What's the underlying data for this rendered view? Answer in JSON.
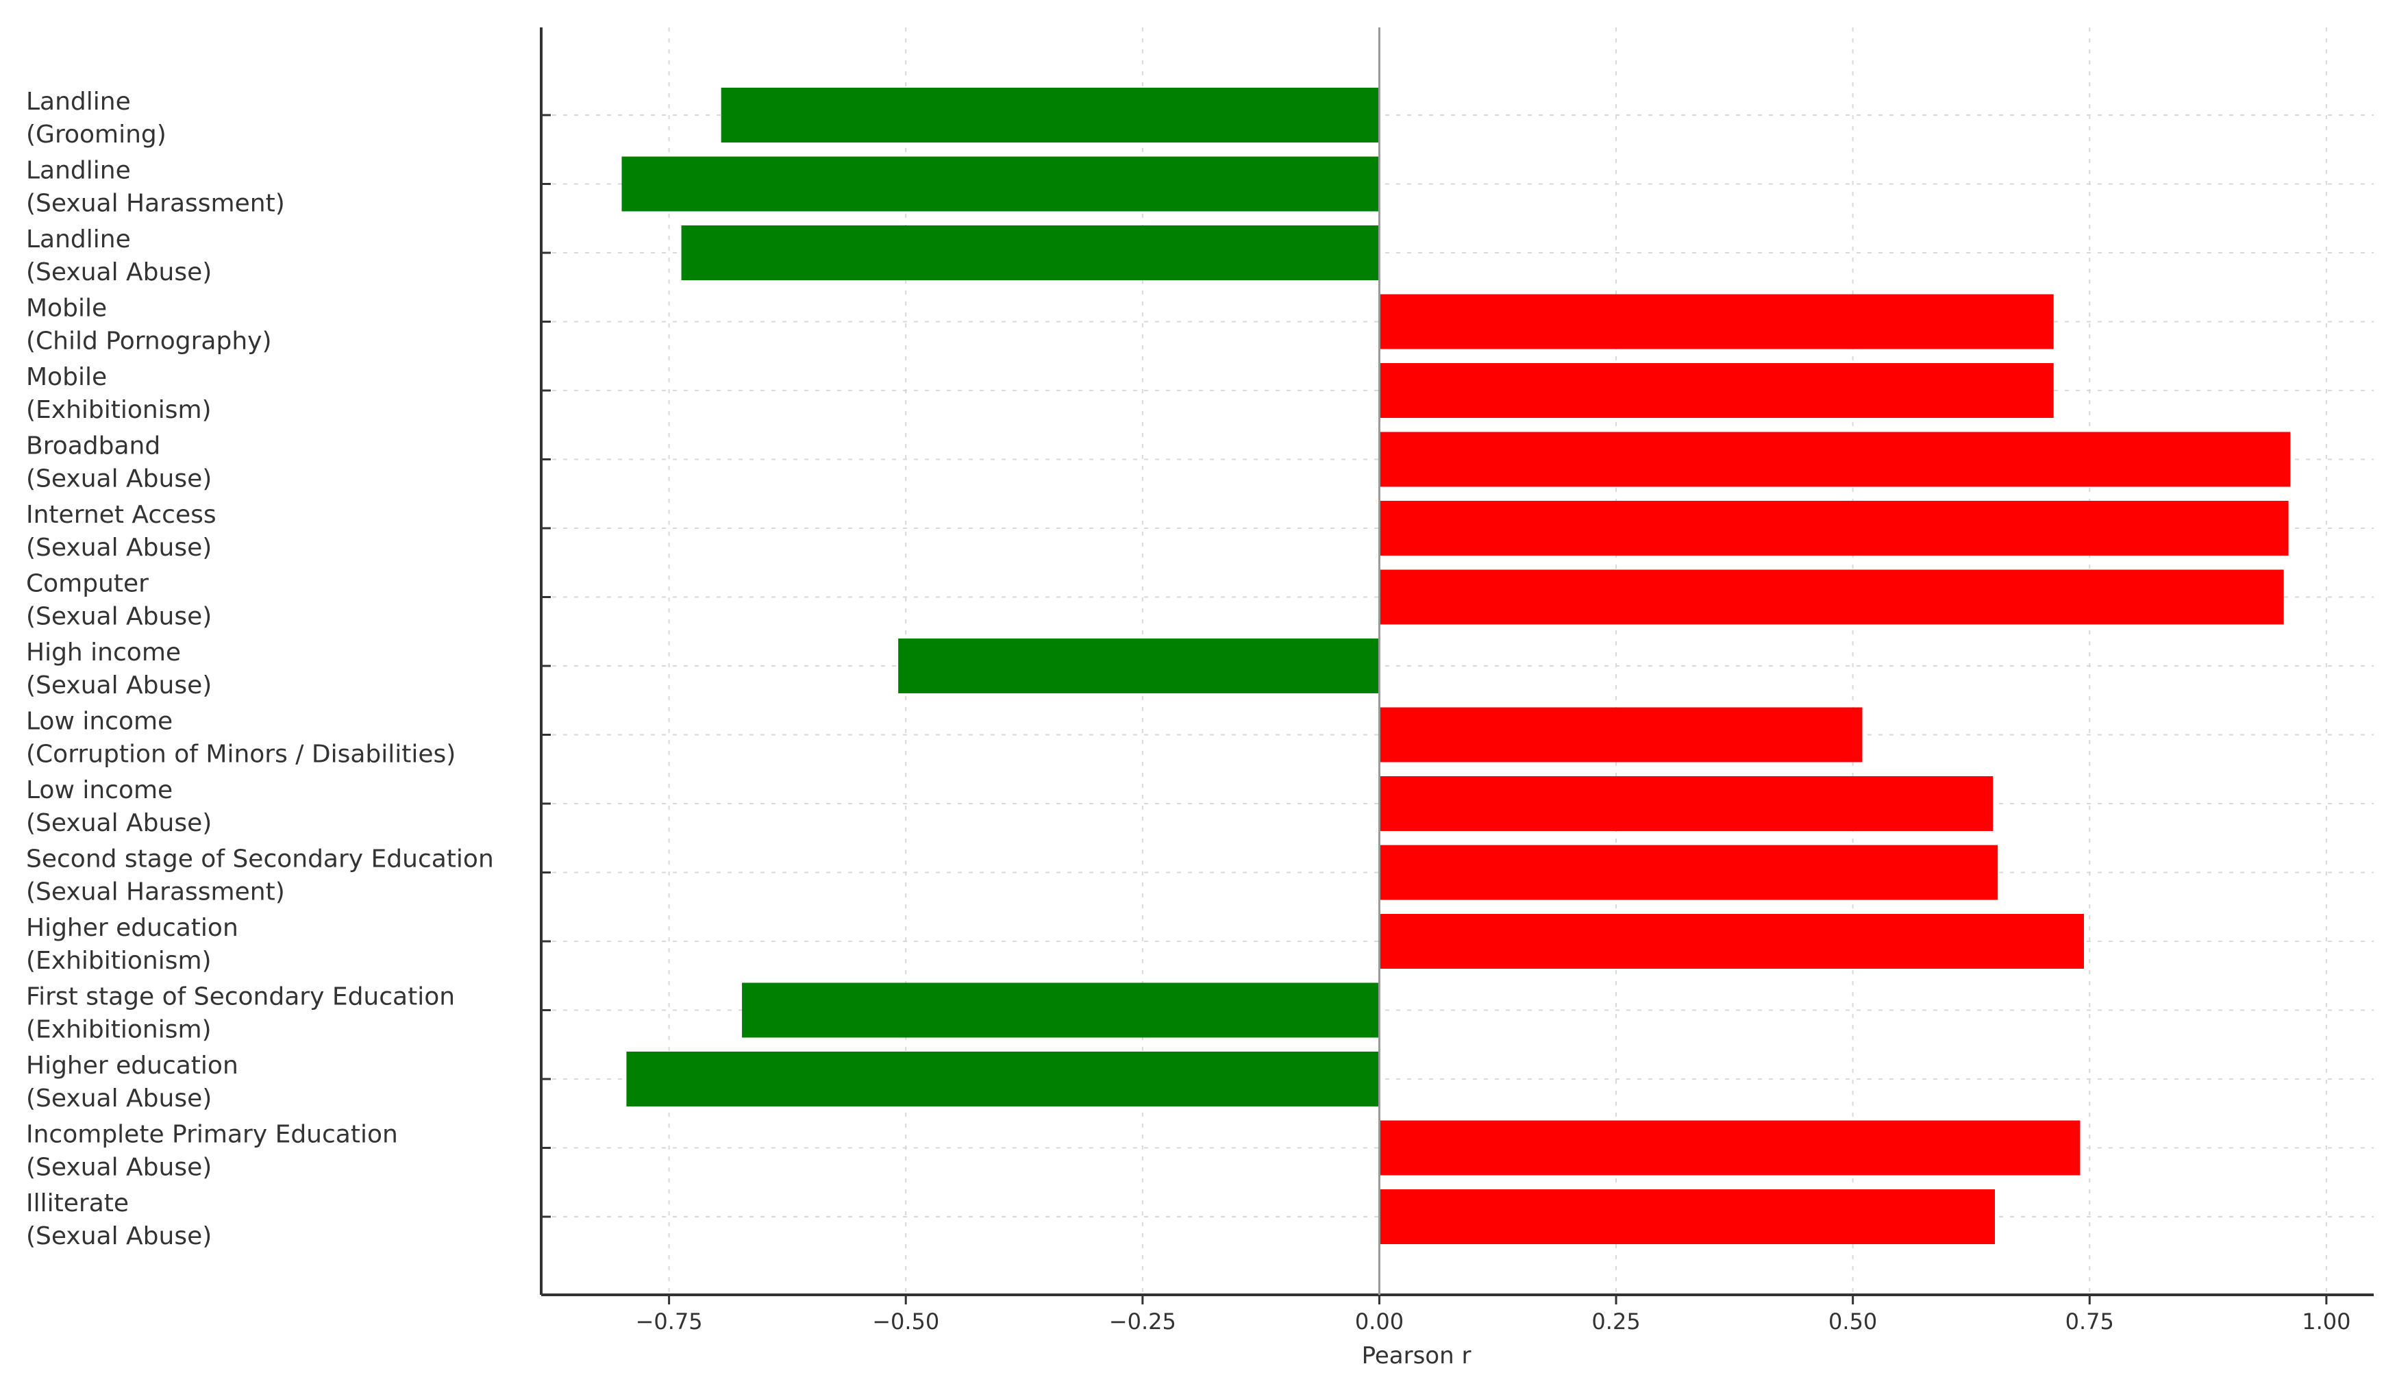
{
  "chart_data": {
    "type": "bar",
    "orientation": "horizontal",
    "xlabel": "Pearson r",
    "xlim": [
      -0.885,
      1.05
    ],
    "grid": true,
    "legend": "none",
    "x_ticks": [
      "−0.75",
      "−0.50",
      "−0.25",
      "0.00",
      "0.25",
      "0.50",
      "0.75",
      "1.00"
    ],
    "x_tick_values": [
      -0.75,
      -0.5,
      -0.25,
      0,
      0.25,
      0.5,
      0.75,
      1.0
    ],
    "positive_color": "#ff0000",
    "negative_color": "#008000",
    "bars": [
      {
        "line1": "Landline",
        "line2": "(Grooming)",
        "value": -0.695
      },
      {
        "line1": "Landline",
        "line2": "(Sexual Harassment)",
        "value": -0.8
      },
      {
        "line1": "Landline",
        "line2": "(Sexual Abuse)",
        "value": -0.737
      },
      {
        "line1": "Mobile",
        "line2": "(Child Pornography)",
        "value": 0.712
      },
      {
        "line1": "Mobile",
        "line2": "(Exhibitionism)",
        "value": 0.712
      },
      {
        "line1": "Broadband",
        "line2": "(Sexual Abuse)",
        "value": 0.962
      },
      {
        "line1": "Internet Access",
        "line2": "(Sexual Abuse)",
        "value": 0.96
      },
      {
        "line1": "Computer",
        "line2": "(Sexual Abuse)",
        "value": 0.955
      },
      {
        "line1": "High income",
        "line2": "(Sexual Abuse)",
        "value": -0.508
      },
      {
        "line1": "Low income",
        "line2": "(Corruption of Minors / Disabilities)",
        "value": 0.51
      },
      {
        "line1": "Low income",
        "line2": "(Sexual Abuse)",
        "value": 0.648
      },
      {
        "line1": "Second stage of Secondary Education",
        "line2": "(Sexual Harassment)",
        "value": 0.653
      },
      {
        "line1": "Higher education",
        "line2": "(Exhibitionism)",
        "value": 0.744
      },
      {
        "line1": "First stage of Secondary Education",
        "line2": "(Exhibitionism)",
        "value": -0.673
      },
      {
        "line1": "Higher education",
        "line2": "(Sexual Abuse)",
        "value": -0.795
      },
      {
        "line1": "Incomplete Primary Education",
        "line2": "(Sexual Abuse)",
        "value": 0.74
      },
      {
        "line1": "Illiterate",
        "line2": "(Sexual Abuse)",
        "value": 0.65
      }
    ]
  }
}
